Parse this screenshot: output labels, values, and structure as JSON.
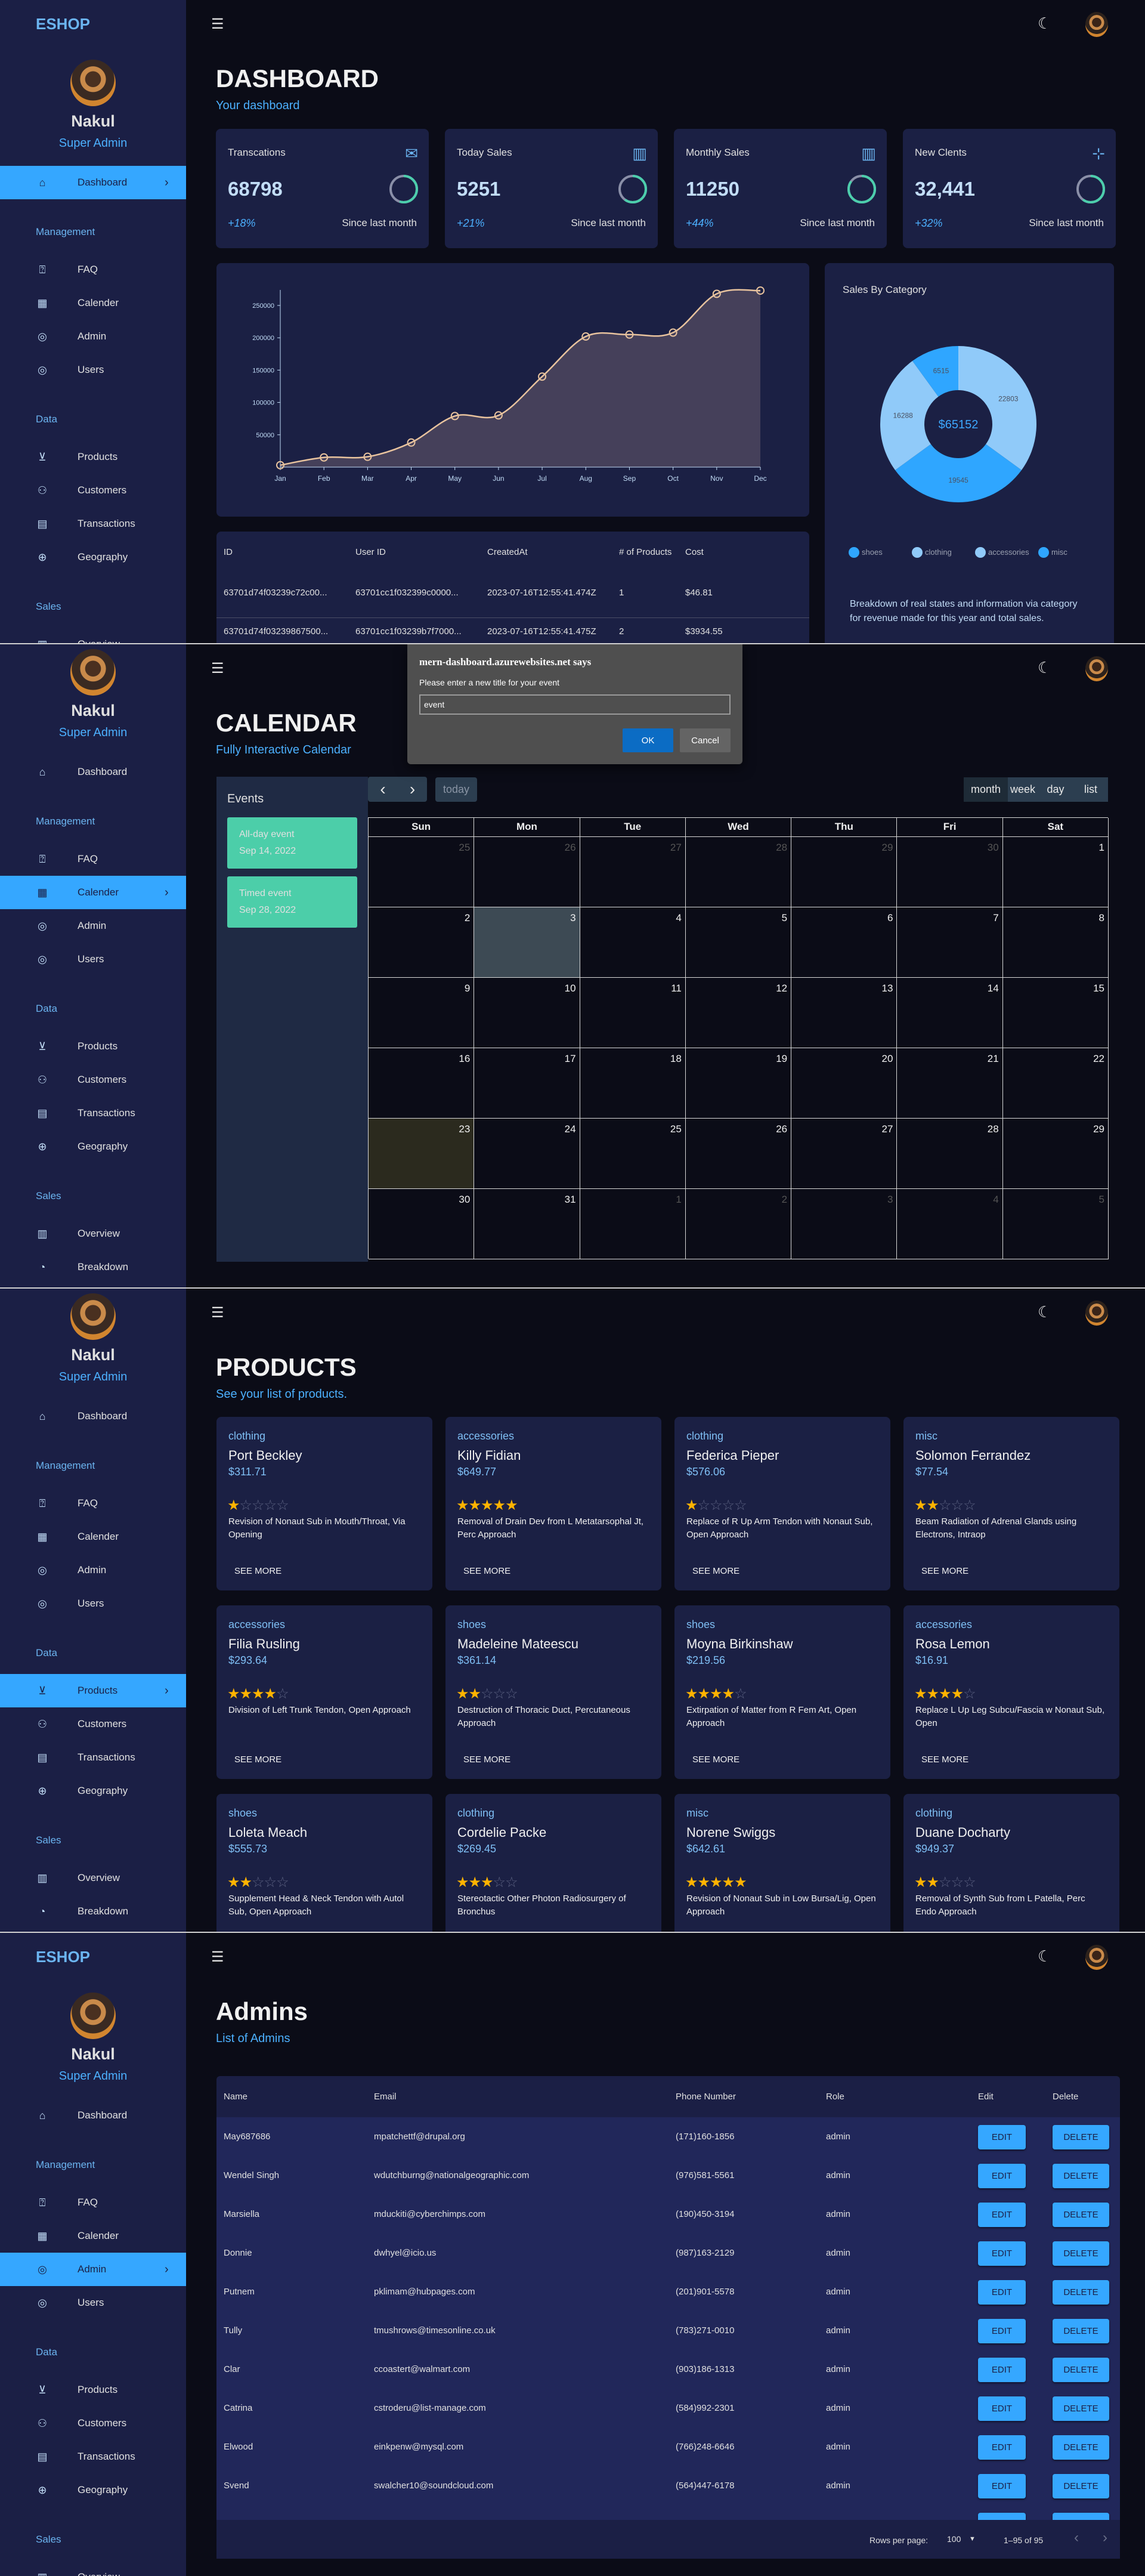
{
  "sidebar": {
    "brand": "ESHOP",
    "user": {
      "name": "Nakul",
      "role": "Super Admin"
    },
    "dashboard_item": {
      "label": "Dashboard",
      "icon": "home-icon"
    },
    "sections": [
      {
        "title": "Management",
        "items": [
          {
            "label": "FAQ",
            "icon": "faq-icon"
          },
          {
            "label": "Calender",
            "icon": "calendar-icon"
          },
          {
            "label": "Admin",
            "icon": "admin-icon"
          },
          {
            "label": "Users",
            "icon": "users-icon"
          }
        ]
      },
      {
        "title": "Data",
        "items": [
          {
            "label": "Products",
            "icon": "cart-icon"
          },
          {
            "label": "Customers",
            "icon": "customers-icon"
          },
          {
            "label": "Transactions",
            "icon": "receipt-icon"
          },
          {
            "label": "Geography",
            "icon": "globe-icon"
          }
        ]
      },
      {
        "title": "Sales",
        "items": [
          {
            "label": "Overview",
            "icon": "point-of-sale-icon"
          },
          {
            "label": "Breakdown",
            "icon": "pie-icon"
          }
        ]
      }
    ]
  },
  "colors": {
    "accent": "#35a7ff",
    "accent_light": "#90caf9",
    "ring": "#4cceac",
    "line": "#e8c39e",
    "card": "#1b2044",
    "sidebar": "#1b1f45",
    "background": "#0b0c17"
  },
  "dashboard": {
    "title": "DASHBOARD",
    "subtitle": "Your dashboard",
    "stats": [
      {
        "title": "Transcations",
        "value": "68798",
        "change": "+18%",
        "since": "Since last month",
        "icon": "mail-icon",
        "progress": 0.55
      },
      {
        "title": "Today Sales",
        "value": "5251",
        "change": "+21%",
        "since": "Since last month",
        "icon": "point-of-sale-icon",
        "progress": 0.6
      },
      {
        "title": "Monthly Sales",
        "value": "11250",
        "change": "+44%",
        "since": "Since last month",
        "icon": "point-of-sale-icon",
        "progress": 0.85
      },
      {
        "title": "New Clents",
        "value": "32,441",
        "change": "+32%",
        "since": "Since last month",
        "icon": "person-add-icon",
        "progress": 0.6
      }
    ],
    "transactions": {
      "columns": [
        "ID",
        "User ID",
        "CreatedAt",
        "# of Products",
        "Cost"
      ],
      "rows": [
        [
          "63701d74f03239c72c00...",
          "63701cc1f032399c0000...",
          "2023-07-16T12:55:41.474Z",
          "1",
          "$46.81"
        ],
        [
          "63701d74f03239867500...",
          "63701cc1f03239b7f7000...",
          "2023-07-16T12:55:41.475Z",
          "2",
          "$3934.55"
        ]
      ]
    },
    "sales_by_category": {
      "title": "Sales By Category",
      "total": "$65152",
      "description": "Breakdown of real states and information via category for revenue made for this year and total sales."
    }
  },
  "chart_data": [
    {
      "type": "area",
      "categories": [
        "Jan",
        "Feb",
        "Mar",
        "Apr",
        "May",
        "Jun",
        "Jul",
        "Aug",
        "Sep",
        "Oct",
        "Nov",
        "Dec"
      ],
      "values": [
        3000,
        15000,
        16000,
        38000,
        79000,
        80000,
        140000,
        202000,
        205000,
        208000,
        268000,
        273000
      ],
      "yticks": [
        50000,
        100000,
        150000,
        200000,
        250000
      ],
      "ylim": [
        0,
        275000
      ],
      "grid": false,
      "title": "",
      "xlabel": "",
      "ylabel": ""
    },
    {
      "type": "pie",
      "donut": true,
      "slices": [
        {
          "label": "clothing",
          "value": 22803,
          "color": "#90caf9"
        },
        {
          "label": "shoes",
          "value": 19545,
          "color": "#2fa6ff"
        },
        {
          "label": "accessories",
          "value": 16288,
          "color": "#90caf9"
        },
        {
          "label": "misc",
          "value": 6515,
          "color": "#2fa6ff"
        }
      ],
      "legend": [
        {
          "label": "shoes",
          "color": "#2fa6ff"
        },
        {
          "label": "clothing",
          "color": "#90caf9"
        },
        {
          "label": "accessories",
          "color": "#90caf9"
        },
        {
          "label": "misc",
          "color": "#2fa6ff"
        }
      ],
      "legend_position": "bottom"
    }
  ],
  "calendar": {
    "title": "CALENDAR",
    "subtitle": "Fully Interactive Calendar",
    "events_title": "Events",
    "events": [
      {
        "title": "All-day event",
        "date": "Sep 14, 2022"
      },
      {
        "title": "Timed event",
        "date": "Sep 28, 2022"
      }
    ],
    "toolbar": {
      "prev": "‹",
      "next": "›",
      "today": "today",
      "views": [
        "month",
        "week",
        "day",
        "list"
      ],
      "active_view": "month"
    },
    "weekdays": [
      "Sun",
      "Mon",
      "Tue",
      "Wed",
      "Thu",
      "Fri",
      "Sat"
    ],
    "weeks": [
      [
        25,
        26,
        27,
        28,
        29,
        30,
        1
      ],
      [
        2,
        3,
        4,
        5,
        6,
        7,
        8
      ],
      [
        9,
        10,
        11,
        12,
        13,
        14,
        15
      ],
      [
        16,
        17,
        18,
        19,
        20,
        21,
        22
      ],
      [
        23,
        24,
        25,
        26,
        27,
        28,
        29
      ],
      [
        30,
        31,
        1,
        2,
        3,
        4,
        5
      ]
    ],
    "selected_day": 3,
    "today": 23,
    "dialog": {
      "origin": "mern-dashboard.azurewebsites.net says",
      "message": "Please enter a new title for your event",
      "input_value": "event",
      "ok": "OK",
      "cancel": "Cancel"
    }
  },
  "products": {
    "title": "PRODUCTS",
    "subtitle": "See your list of products.",
    "see_more": "SEE MORE",
    "items": [
      {
        "category": "clothing",
        "name": "Port Beckley",
        "price": "$311.71",
        "rating": 1,
        "description": "Revision of Nonaut Sub in Mouth/Throat, Via Opening"
      },
      {
        "category": "accessories",
        "name": "Killy Fidian",
        "price": "$649.77",
        "rating": 5,
        "description": "Removal of Drain Dev from L Metatarsophal Jt, Perc Approach"
      },
      {
        "category": "clothing",
        "name": "Federica Pieper",
        "price": "$576.06",
        "rating": 1,
        "description": "Replace of R Up Arm Tendon with Nonaut Sub, Open Approach"
      },
      {
        "category": "misc",
        "name": "Solomon Ferrandez",
        "price": "$77.54",
        "rating": 2,
        "description": "Beam Radiation of Adrenal Glands using Electrons, Intraop"
      },
      {
        "category": "accessories",
        "name": "Filia Rusling",
        "price": "$293.64",
        "rating": 4,
        "description": "Division of Left Trunk Tendon, Open Approach"
      },
      {
        "category": "shoes",
        "name": "Madeleine Mateescu",
        "price": "$361.14",
        "rating": 2,
        "description": "Destruction of Thoracic Duct, Percutaneous Approach"
      },
      {
        "category": "shoes",
        "name": "Moyna Birkinshaw",
        "price": "$219.56",
        "rating": 4,
        "description": "Extirpation of Matter from R Fem Art, Open Approach"
      },
      {
        "category": "accessories",
        "name": "Rosa Lemon",
        "price": "$16.91",
        "rating": 4,
        "description": "Replace L Up Leg Subcu/Fascia w Nonaut Sub, Open"
      },
      {
        "category": "shoes",
        "name": "Loleta Meach",
        "price": "$555.73",
        "rating": 2,
        "description": "Supplement Head & Neck Tendon with Autol Sub, Open Approach"
      },
      {
        "category": "clothing",
        "name": "Cordelie Packe",
        "price": "$269.45",
        "rating": 3,
        "description": "Stereotactic Other Photon Radiosurgery of Bronchus"
      },
      {
        "category": "misc",
        "name": "Norene Swiggs",
        "price": "$642.61",
        "rating": 5,
        "description": "Revision of Nonaut Sub in Low Bursa/Lig, Open Approach"
      },
      {
        "category": "clothing",
        "name": "Duane Docharty",
        "price": "$949.37",
        "rating": 2,
        "description": "Removal of Synth Sub from L Patella, Perc Endo Approach"
      }
    ]
  },
  "admins": {
    "title": "Admins",
    "subtitle": "List of Admins",
    "columns": [
      "Name",
      "Email",
      "Phone Number",
      "Role",
      "Edit",
      "Delete"
    ],
    "edit_label": "EDIT",
    "delete_label": "DELETE",
    "rows": [
      {
        "name": "May687686",
        "email": "mpatchettf@drupal.org",
        "phone": "(171)160-1856",
        "role": "admin"
      },
      {
        "name": "Wendel Singh",
        "email": "wdutchburng@nationalgeographic.com",
        "phone": "(976)581-5561",
        "role": "admin"
      },
      {
        "name": "Marsiella",
        "email": "mduckiti@cyberchimps.com",
        "phone": "(190)450-3194",
        "role": "admin"
      },
      {
        "name": "Donnie",
        "email": "dwhyel@icio.us",
        "phone": "(987)163-2129",
        "role": "admin"
      },
      {
        "name": "Putnem",
        "email": "pklimam@hubpages.com",
        "phone": "(201)901-5578",
        "role": "admin"
      },
      {
        "name": "Tully",
        "email": "tmushrows@timesonline.co.uk",
        "phone": "(783)271-0010",
        "role": "admin"
      },
      {
        "name": "Clar",
        "email": "ccoastert@walmart.com",
        "phone": "(903)186-1313",
        "role": "admin"
      },
      {
        "name": "Catrina",
        "email": "cstroderu@list-manage.com",
        "phone": "(584)992-2301",
        "role": "admin"
      },
      {
        "name": "Elwood",
        "email": "einkpenw@mysql.com",
        "phone": "(766)248-6646",
        "role": "admin"
      },
      {
        "name": "Svend",
        "email": "swalcher10@soundcloud.com",
        "phone": "(564)447-6178",
        "role": "admin"
      }
    ],
    "pagination": {
      "rows_per_page_label": "Rows per page:",
      "rows_per_page": "100",
      "range": "1–95 of 95",
      "prev": "‹",
      "next": "›"
    }
  }
}
